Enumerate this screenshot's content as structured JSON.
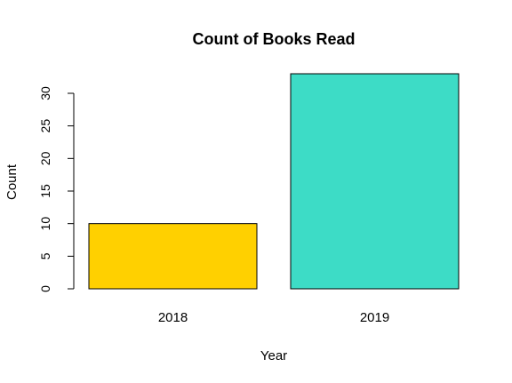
{
  "chart_data": {
    "type": "bar",
    "title": "Count of Books Read",
    "xlabel": "Year",
    "ylabel": "Count",
    "categories": [
      "2018",
      "2019"
    ],
    "values": [
      10,
      33
    ],
    "colors": [
      "#FFD000",
      "#3DDCC6"
    ],
    "ylim": [
      0,
      33
    ],
    "yticks": [
      0,
      5,
      10,
      15,
      20,
      25,
      30
    ],
    "grid": false,
    "legend": "none"
  }
}
